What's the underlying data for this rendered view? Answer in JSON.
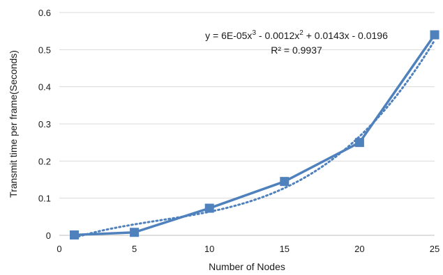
{
  "chart_data": {
    "type": "line",
    "title": "",
    "xlabel": "Number of Nodes",
    "ylabel": "Transmit time per frame(Seconds)",
    "xlim": [
      0,
      25
    ],
    "ylim": [
      0,
      0.6
    ],
    "x_ticks": [
      "0",
      "5",
      "10",
      "15",
      "20",
      "25"
    ],
    "y_ticks": [
      "0",
      "0.1",
      "0.2",
      "0.3",
      "0.4",
      "0.5",
      "0.6"
    ],
    "grid": "horizontal",
    "legend": "none",
    "series": [
      {
        "color": "#4f81bd",
        "marker": "square",
        "x": [
          1,
          5,
          10,
          15,
          20,
          25
        ],
        "y": [
          0.001,
          0.008,
          0.073,
          0.145,
          0.25,
          0.54
        ]
      }
    ],
    "trendline": {
      "type": "polynomial",
      "order": 3,
      "style": "dotted",
      "color": "#4f81bd",
      "coefficients": [
        6e-05,
        -0.0012,
        0.0143,
        -0.0196
      ],
      "equation": {
        "prefix": "y = 6E-05x",
        "sup1": "3",
        "mid": " - 0.0012x",
        "sup2": "2",
        "suffix": " + 0.0143x - 0.0196"
      },
      "r_squared": "R² = 0.9937"
    }
  }
}
